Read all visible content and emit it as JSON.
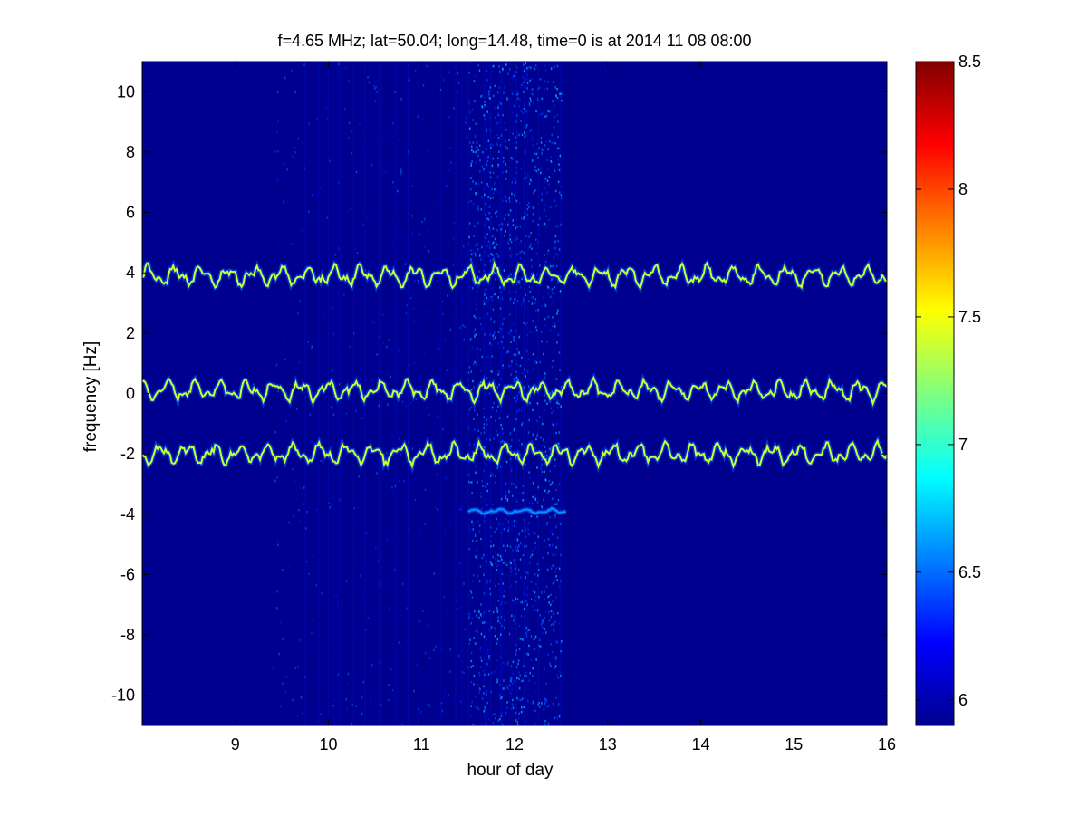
{
  "chart_data": {
    "type": "heatmap",
    "title": "f=4.65 MHz;  lat=50.04; long=14.48, time=0 is at 2014 11 08 08:00",
    "xlabel": "hour of day",
    "ylabel": "frequency [Hz]",
    "xlim": [
      8,
      16
    ],
    "ylim": [
      -11,
      11
    ],
    "x_ticks": [
      9,
      10,
      11,
      12,
      13,
      14,
      15,
      16
    ],
    "y_ticks": [
      -10,
      -8,
      -6,
      -4,
      -2,
      0,
      2,
      4,
      6,
      8,
      10
    ],
    "colorbar": {
      "range": [
        5.9,
        8.5
      ],
      "ticks": [
        6,
        6.5,
        7,
        7.5,
        8,
        8.5
      ],
      "colormap": "jet"
    },
    "background_level": 5.95,
    "noise_band": {
      "x_range": [
        9.4,
        12.5
      ],
      "level": 6.3
    },
    "dense_noise_band": {
      "x_range": [
        11.5,
        12.5
      ],
      "level": 6.5
    },
    "traces": [
      {
        "mean_freq": 3.9,
        "x_range": [
          8,
          16
        ],
        "level": 7.4
      },
      {
        "mean_freq": 0.1,
        "x_range": [
          8,
          16
        ],
        "level": 7.4
      },
      {
        "mean_freq": -2.0,
        "x_range": [
          8,
          16
        ],
        "level": 7.4
      },
      {
        "mean_freq": -3.9,
        "x_range": [
          11.5,
          12.55
        ],
        "level": 6.6
      }
    ],
    "grid": false,
    "legend": "none"
  }
}
